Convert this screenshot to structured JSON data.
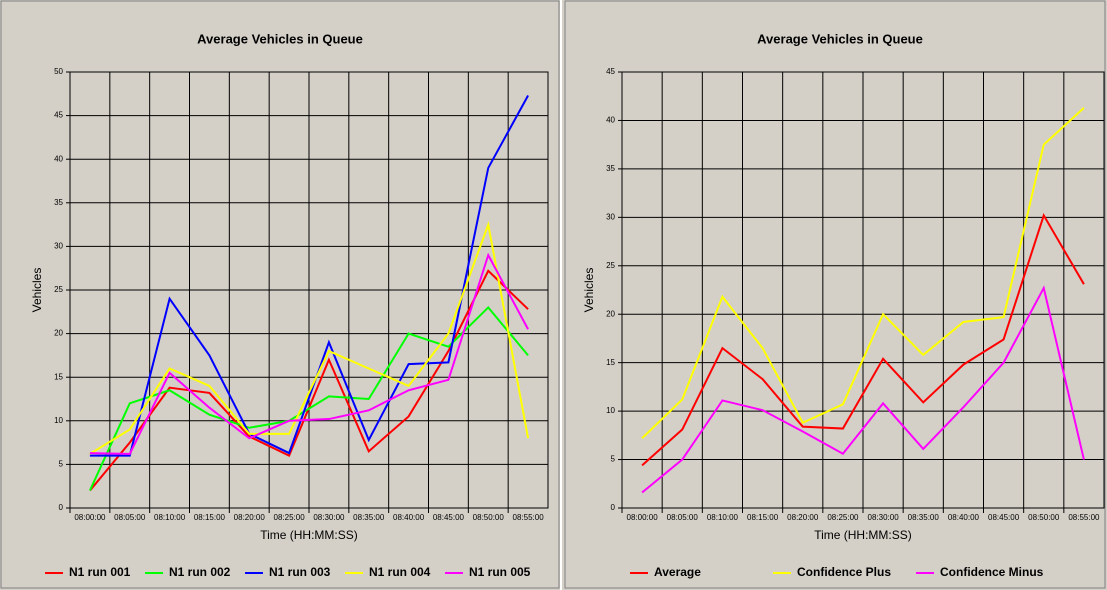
{
  "chart_data": [
    {
      "type": "line",
      "title": "Average Vehicles in Queue",
      "x_label": "Time (HH:MM:SS)",
      "y_label": "Vehicles",
      "categories": [
        "08:00:00",
        "08:05:00",
        "08:10:00",
        "08:15:00",
        "08:20:00",
        "08:25:00",
        "08:30:00",
        "08:35:00",
        "08:40:00",
        "08:45:00",
        "08:50:00",
        "08:55:00"
      ],
      "ylim": [
        0,
        50
      ],
      "yticks": [
        0,
        5,
        10,
        15,
        20,
        25,
        30,
        35,
        40,
        45,
        50
      ],
      "grid": true,
      "legend": "bottom",
      "series": [
        {
          "name": "N1 run 001",
          "color": "#ff0000",
          "values": [
            2,
            7.5,
            13.8,
            13.2,
            8.2,
            6,
            17,
            6.5,
            10.5,
            18,
            27.2,
            22.8
          ]
        },
        {
          "name": "N1 run 002",
          "color": "#00ff00",
          "values": [
            2,
            12,
            13.5,
            10.7,
            9.2,
            10,
            12.8,
            12.5,
            20,
            18.5,
            23,
            17.5
          ]
        },
        {
          "name": "N1 run 003",
          "color": "#0000ff",
          "values": [
            6,
            6,
            24,
            17.5,
            8.5,
            6.3,
            19,
            7.8,
            16.5,
            16.7,
            39,
            47.3
          ]
        },
        {
          "name": "N1 run 004",
          "color": "#ffff00",
          "values": [
            6.2,
            9,
            16,
            14,
            8.5,
            8.5,
            18,
            16,
            14,
            20,
            32.5,
            8
          ]
        },
        {
          "name": "N1 run 005",
          "color": "#ff00ff",
          "values": [
            6.3,
            6.2,
            15.5,
            11.5,
            8,
            10,
            10.2,
            11.2,
            13.5,
            14.7,
            29,
            20.5
          ]
        }
      ]
    },
    {
      "type": "line",
      "title": "Average Vehicles in Queue",
      "x_label": "Time (HH:MM:SS)",
      "y_label": "Vehicles",
      "categories": [
        "08:00:00",
        "08:05:00",
        "08:10:00",
        "08:15:00",
        "08:20:00",
        "08:25:00",
        "08:30:00",
        "08:35:00",
        "08:40:00",
        "08:45:00",
        "08:50:00",
        "08:55:00"
      ],
      "ylim": [
        0,
        45
      ],
      "yticks": [
        0,
        5,
        10,
        15,
        20,
        25,
        30,
        35,
        40,
        45
      ],
      "grid": true,
      "legend": "bottom",
      "series": [
        {
          "name": "Average",
          "color": "#ff0000",
          "values": [
            4.4,
            8.1,
            16.5,
            13.3,
            8.4,
            8.2,
            15.4,
            10.9,
            14.8,
            17.4,
            30.2,
            23.1
          ]
        },
        {
          "name": "Confidence Plus",
          "color": "#ffff00",
          "values": [
            7.2,
            11.2,
            21.8,
            16.5,
            8.8,
            10.7,
            20,
            15.8,
            19.2,
            19.7,
            37.5,
            41.3
          ]
        },
        {
          "name": "Confidence Minus",
          "color": "#ff00ff",
          "values": [
            1.6,
            5,
            11.1,
            10.1,
            7.9,
            5.6,
            10.8,
            6.1,
            10.4,
            15,
            22.7,
            5
          ]
        }
      ]
    }
  ]
}
